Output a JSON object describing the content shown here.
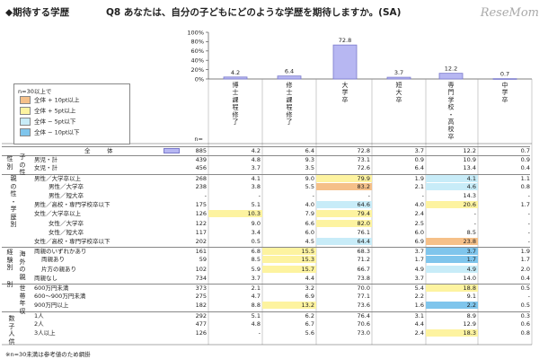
{
  "header": {
    "section_title": "◆期待する学歴",
    "question": "Q8 あなたは、自分の子どもにどのような学歴を期待しますか。(SA)",
    "logo_text": "ReseMom"
  },
  "chart_data": {
    "type": "bar",
    "categories": [
      "博士課程修了",
      "修士課程修了",
      "大学卒",
      "短大卒",
      "専門学校・高校卒",
      "中学卒"
    ],
    "values": [
      4.2,
      6.4,
      72.8,
      3.7,
      12.2,
      0.7
    ],
    "value_labels": [
      "4.2",
      "6.4",
      "72.8",
      "3.7",
      "12.2",
      "0.7"
    ],
    "yticks": [
      "100%",
      "80%",
      "60%",
      "40%",
      "20%",
      "0%"
    ],
    "ylim": [
      0,
      100
    ],
    "bar_color": "#b7b7f2",
    "bar_border": "#7a7acc",
    "category_label_chars": [
      [
        "博",
        "士",
        "課",
        "程",
        "修",
        "了"
      ],
      [
        "修",
        "士",
        "課",
        "程",
        "修",
        "了"
      ],
      [
        "大",
        "学",
        "卒"
      ],
      [
        "短",
        "大",
        "卒"
      ],
      [
        "専",
        "門",
        "学",
        "校",
        "・",
        "高",
        "校",
        "卒"
      ],
      [
        "中",
        "学",
        "卒"
      ]
    ]
  },
  "legend": {
    "header": "n=30以上で",
    "items": [
      {
        "label": "全体 + 10pt以上",
        "color": "#f5c089"
      },
      {
        "label": "全体 + 5pt以上",
        "color": "#fdf3a0"
      },
      {
        "label": "全体 − 5pt以下",
        "color": "#c8ecf8"
      },
      {
        "label": "全体 − 10pt以下",
        "color": "#7fc5ec"
      }
    ]
  },
  "table": {
    "n_header": "n=",
    "rows": [
      {
        "label": "全　体",
        "n": "885",
        "v": [
          "4.2",
          "6.4",
          "72.8",
          "3.7",
          "12.2",
          "0.7"
        ],
        "h": [
          "",
          "",
          "",
          "",
          "",
          ""
        ]
      },
      {
        "label": "男児・計",
        "n": "439",
        "v": [
          "4.8",
          "9.3",
          "73.1",
          "0.9",
          "10.9",
          "0.9"
        ],
        "h": [
          "",
          "",
          "",
          "",
          "",
          ""
        ]
      },
      {
        "label": "女児・計",
        "n": "456",
        "v": [
          "3.7",
          "3.5",
          "72.6",
          "6.4",
          "13.4",
          "0.4"
        ],
        "h": [
          "",
          "",
          "",
          "",
          "",
          ""
        ]
      },
      {
        "label": "男性／大学卒以上",
        "n": "268",
        "v": [
          "4.1",
          "9.0",
          "79.9",
          "1.9",
          "4.1",
          "1.1"
        ],
        "h": [
          "",
          "",
          "y",
          "",
          "lb",
          ""
        ]
      },
      {
        "label": "男性／大学卒",
        "n": "238",
        "v": [
          "3.8",
          "5.5",
          "83.2",
          "2.1",
          "4.6",
          "0.8"
        ],
        "h": [
          "",
          "",
          "o",
          "",
          "lb",
          ""
        ]
      },
      {
        "label": "男性／短大卒",
        "n": "-",
        "v": [
          "-",
          "-",
          "-",
          "-",
          "14.3",
          "-"
        ],
        "h": [
          "",
          "",
          "",
          "",
          "",
          ""
        ]
      },
      {
        "label": "男性／高校・専門学校卒以下",
        "n": "175",
        "v": [
          "5.1",
          "4.0",
          "64.6",
          "4.0",
          "20.6",
          "1.7"
        ],
        "h": [
          "",
          "",
          "lb",
          "",
          "y",
          ""
        ]
      },
      {
        "label": "女性／大学卒以上",
        "n": "126",
        "v": [
          "10.3",
          "7.9",
          "79.4",
          "2.4",
          "-",
          "-"
        ],
        "h": [
          "y",
          "",
          "y",
          "",
          "",
          ""
        ]
      },
      {
        "label": "女性／大学卒",
        "n": "122",
        "v": [
          "9.0",
          "6.6",
          "82.0",
          "2.5",
          "-",
          "-"
        ],
        "h": [
          "",
          "",
          "y",
          "",
          "",
          ""
        ]
      },
      {
        "label": "女性／短大卒",
        "n": "117",
        "v": [
          "3.4",
          "6.0",
          "76.1",
          "6.0",
          "8.5",
          "-"
        ],
        "h": [
          "",
          "",
          "",
          "",
          "",
          ""
        ]
      },
      {
        "label": "女性／高校・専門学校卒以下",
        "n": "202",
        "v": [
          "0.5",
          "4.5",
          "64.4",
          "6.9",
          "23.8",
          "-"
        ],
        "h": [
          "",
          "",
          "lb",
          "",
          "o",
          ""
        ]
      },
      {
        "label": "両親のいずれかあり",
        "n": "161",
        "v": [
          "6.8",
          "15.5",
          "68.3",
          "3.7",
          "3.7",
          "1.9"
        ],
        "h": [
          "",
          "y",
          "",
          "",
          "db",
          ""
        ]
      },
      {
        "label": "両親あり",
        "n": "59",
        "v": [
          "8.5",
          "15.3",
          "71.2",
          "1.7",
          "1.7",
          "1.7"
        ],
        "h": [
          "",
          "y",
          "",
          "",
          "db",
          ""
        ]
      },
      {
        "label": "片方の親あり",
        "n": "102",
        "v": [
          "5.9",
          "15.7",
          "66.7",
          "4.9",
          "4.9",
          "2.0"
        ],
        "h": [
          "",
          "y",
          "",
          "",
          "lb",
          ""
        ]
      },
      {
        "label": "両親なし",
        "n": "734",
        "v": [
          "3.7",
          "4.4",
          "73.8",
          "3.7",
          "14.0",
          "0.4"
        ],
        "h": [
          "",
          "",
          "",
          "",
          "",
          ""
        ]
      },
      {
        "label": "600万円未満",
        "n": "373",
        "v": [
          "2.1",
          "3.2",
          "70.0",
          "5.4",
          "18.8",
          "0.5"
        ],
        "h": [
          "",
          "",
          "",
          "",
          "y",
          ""
        ]
      },
      {
        "label": "600〜900万円未満",
        "n": "275",
        "v": [
          "4.7",
          "6.9",
          "77.1",
          "2.2",
          "9.1",
          "-"
        ],
        "h": [
          "",
          "",
          "",
          "",
          "",
          ""
        ]
      },
      {
        "label": "900万円以上",
        "n": "182",
        "v": [
          "8.8",
          "13.2",
          "73.6",
          "1.6",
          "2.2",
          "0.5"
        ],
        "h": [
          "",
          "y",
          "",
          "",
          "db",
          ""
        ]
      },
      {
        "label": "1人",
        "n": "292",
        "v": [
          "5.1",
          "6.2",
          "76.4",
          "3.1",
          "8.9",
          "0.3"
        ],
        "h": [
          "",
          "",
          "",
          "",
          "",
          ""
        ]
      },
      {
        "label": "2人",
        "n": "477",
        "v": [
          "4.8",
          "6.7",
          "70.6",
          "4.4",
          "12.9",
          "0.6"
        ],
        "h": [
          "",
          "",
          "",
          "",
          "",
          ""
        ]
      },
      {
        "label": "3人以上",
        "n": "126",
        "v": [
          "-",
          "5.6",
          "73.0",
          "2.4",
          "18.3",
          "0.8"
        ],
        "h": [
          "",
          "",
          "",
          "",
          "y",
          ""
        ]
      }
    ],
    "groups": [
      {
        "label": "性別",
        "ch": [
          "性",
          "別"
        ]
      },
      {
        "label": "子の性",
        "ch": [
          "子",
          "の",
          "性"
        ]
      },
      {
        "label": "親の性・学歴別",
        "ch": [
          "親",
          "の",
          "性",
          "・",
          "学",
          "歴",
          "別"
        ]
      },
      {
        "label": "経験別",
        "ch": [
          "経",
          "験",
          "別"
        ]
      },
      {
        "label": "海外の親",
        "ch": [
          "海",
          "外",
          "の",
          "親"
        ]
      },
      {
        "label": "別",
        "ch": [
          "別"
        ]
      },
      {
        "label": "世帯年収",
        "ch": [
          "世",
          "帯",
          "年",
          "収"
        ]
      },
      {
        "label": "数子人供",
        "ch": [
          "数",
          "子",
          "人",
          "供"
        ]
      }
    ]
  },
  "footer": "※n=30未満は参考値のため網掛"
}
